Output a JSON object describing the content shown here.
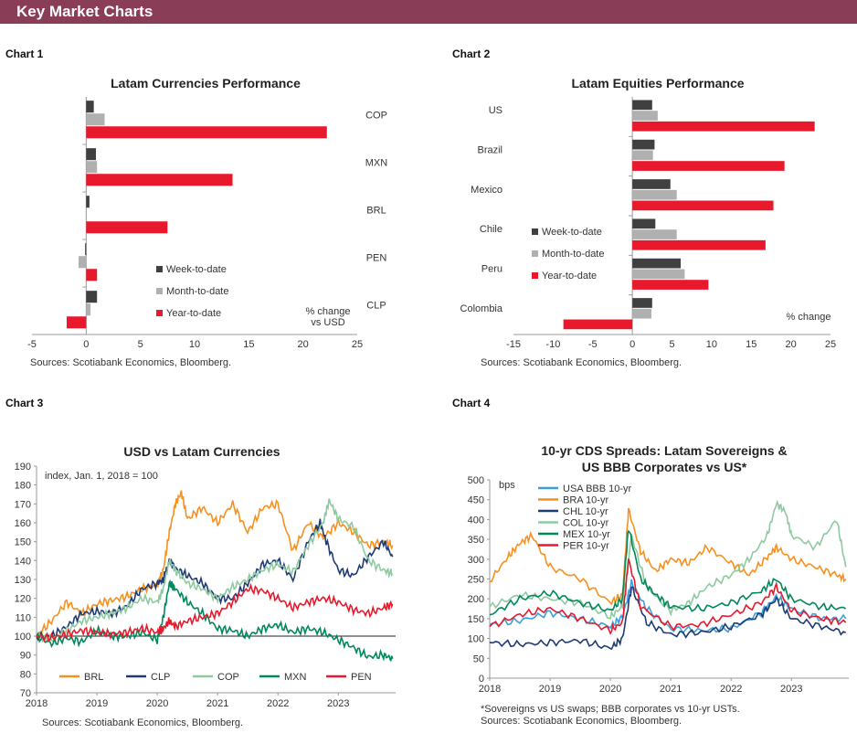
{
  "header": {
    "title": "Key Market Charts"
  },
  "chart_labels": [
    "Chart 1",
    "Chart 2",
    "Chart 3",
    "Chart 4"
  ],
  "chart_data": [
    {
      "type": "bar",
      "orientation": "horizontal",
      "title": "Latam Currencies Performance",
      "categories": [
        "COP",
        "MXN",
        "BRL",
        "PEN",
        "CLP"
      ],
      "series": [
        {
          "name": "Week-to-date",
          "color": "#404040",
          "values": [
            0.7,
            0.9,
            0.3,
            -0.1,
            1.0
          ]
        },
        {
          "name": "Month-to-date",
          "color": "#b0b0b0",
          "values": [
            1.7,
            1.0,
            0.0,
            -0.7,
            0.4
          ]
        },
        {
          "name": "Year-to-date",
          "color": "#e8192c",
          "values": [
            22.2,
            13.5,
            7.5,
            1.0,
            -1.8
          ]
        }
      ],
      "xlim": [
        -5,
        25
      ],
      "xticks": [
        "-5",
        "0",
        "5",
        "10",
        "15",
        "20",
        "25"
      ],
      "unit_note": [
        "% change",
        "vs USD"
      ],
      "source": "Sources: Scotiabank Economics, Bloomberg."
    },
    {
      "type": "bar",
      "orientation": "horizontal",
      "title": "Latam Equities Performance",
      "categories": [
        "US",
        "Brazil",
        "Mexico",
        "Chile",
        "Peru",
        "Colombia"
      ],
      "series": [
        {
          "name": "Week-to-date",
          "color": "#404040",
          "values": [
            2.5,
            2.8,
            4.8,
            2.9,
            6.1,
            2.5
          ]
        },
        {
          "name": "Month-to-date",
          "color": "#b0b0b0",
          "values": [
            3.2,
            2.6,
            5.6,
            5.6,
            6.6,
            2.4
          ]
        },
        {
          "name": "Year-to-date",
          "color": "#e8192c",
          "values": [
            23.0,
            19.2,
            17.8,
            16.8,
            9.6,
            -8.7
          ]
        }
      ],
      "xlim": [
        -15,
        25
      ],
      "xticks": [
        "-15",
        "-10",
        "-5",
        "0",
        "5",
        "10",
        "15",
        "20",
        "25"
      ],
      "unit_note": [
        "% change"
      ],
      "source": "Sources: Scotiabank Economics, Bloomberg."
    },
    {
      "type": "line",
      "title": "USD vs Latam Currencies",
      "note": "index, Jan. 1, 2018 = 100",
      "x_ticks": [
        "2018",
        "2019",
        "2020",
        "2021",
        "2022",
        "2023"
      ],
      "ylim": [
        70,
        190
      ],
      "yticks": [
        "70",
        "80",
        "90",
        "100",
        "110",
        "120",
        "130",
        "140",
        "150",
        "160",
        "170",
        "180",
        "190"
      ],
      "baseline": 100,
      "series": [
        {
          "name": "BRL",
          "color": "#f7901e",
          "x": [
            2018.0,
            2018.25,
            2018.5,
            2018.75,
            2019.0,
            2019.25,
            2019.5,
            2019.75,
            2020.0,
            2020.1,
            2020.2,
            2020.3,
            2020.4,
            2020.5,
            2020.75,
            2021.0,
            2021.25,
            2021.5,
            2021.75,
            2022.0,
            2022.25,
            2022.5,
            2022.75,
            2023.0,
            2023.25,
            2023.5,
            2023.75,
            2023.9
          ],
          "values": [
            100,
            108,
            118,
            112,
            117,
            119,
            121,
            125,
            127,
            135,
            155,
            170,
            176,
            162,
            168,
            160,
            170,
            155,
            168,
            170,
            145,
            160,
            152,
            160,
            155,
            148,
            150,
            148
          ]
        },
        {
          "name": "CLP",
          "color": "#1f3b73",
          "x": [
            2018.0,
            2018.25,
            2018.5,
            2018.75,
            2019.0,
            2019.25,
            2019.5,
            2019.75,
            2020.0,
            2020.1,
            2020.2,
            2020.3,
            2020.5,
            2020.75,
            2021.0,
            2021.25,
            2021.5,
            2021.75,
            2022.0,
            2022.25,
            2022.5,
            2022.7,
            2022.8,
            2023.0,
            2023.25,
            2023.5,
            2023.75,
            2023.9
          ],
          "values": [
            100,
            100,
            105,
            112,
            113,
            112,
            116,
            125,
            128,
            130,
            140,
            136,
            132,
            128,
            120,
            120,
            128,
            138,
            140,
            130,
            150,
            160,
            150,
            135,
            132,
            142,
            150,
            142
          ]
        },
        {
          "name": "COP",
          "color": "#8fc9a0",
          "x": [
            2018.0,
            2018.25,
            2018.5,
            2018.75,
            2019.0,
            2019.25,
            2019.5,
            2019.75,
            2020.0,
            2020.1,
            2020.2,
            2020.3,
            2020.5,
            2020.75,
            2021.0,
            2021.25,
            2021.5,
            2021.75,
            2022.0,
            2022.25,
            2022.5,
            2022.75,
            2022.85,
            2023.0,
            2023.25,
            2023.5,
            2023.75,
            2023.9
          ],
          "values": [
            100,
            98,
            103,
            108,
            110,
            112,
            115,
            120,
            118,
            125,
            140,
            135,
            128,
            125,
            120,
            126,
            130,
            135,
            138,
            134,
            148,
            160,
            172,
            162,
            158,
            140,
            135,
            133
          ]
        },
        {
          "name": "MXN",
          "color": "#00875a",
          "x": [
            2018.0,
            2018.25,
            2018.5,
            2018.75,
            2019.0,
            2019.25,
            2019.5,
            2019.75,
            2020.0,
            2020.1,
            2020.2,
            2020.3,
            2020.5,
            2020.75,
            2021.0,
            2021.25,
            2021.5,
            2021.75,
            2022.0,
            2022.25,
            2022.5,
            2022.75,
            2023.0,
            2023.25,
            2023.5,
            2023.75,
            2023.9
          ],
          "values": [
            100,
            96,
            99,
            97,
            103,
            100,
            100,
            102,
            98,
            110,
            128,
            125,
            118,
            112,
            104,
            103,
            100,
            104,
            106,
            102,
            104,
            102,
            98,
            94,
            89,
            90,
            88
          ]
        },
        {
          "name": "PEN",
          "color": "#e8192c",
          "x": [
            2018.0,
            2018.25,
            2018.5,
            2018.75,
            2019.0,
            2019.25,
            2019.5,
            2019.75,
            2020.0,
            2020.1,
            2020.2,
            2020.3,
            2020.5,
            2020.75,
            2021.0,
            2021.25,
            2021.5,
            2021.75,
            2022.0,
            2022.25,
            2022.5,
            2022.75,
            2023.0,
            2023.25,
            2023.5,
            2023.75,
            2023.9
          ],
          "values": [
            100,
            99,
            101,
            103,
            102,
            101,
            102,
            104,
            102,
            104,
            108,
            105,
            108,
            110,
            112,
            118,
            125,
            124,
            120,
            115,
            118,
            120,
            118,
            114,
            112,
            115,
            117
          ]
        }
      ],
      "source": "Sources: Scotiabank Economics, Bloomberg."
    },
    {
      "type": "line",
      "title": [
        "10-yr CDS Spreads: Latam Sovereigns &",
        "US BBB Corporates vs US*"
      ],
      "ylabel": "bps",
      "x_ticks": [
        "2018",
        "2019",
        "2020",
        "2021",
        "2022",
        "2023"
      ],
      "ylim": [
        0,
        500
      ],
      "yticks": [
        "0",
        "50",
        "100",
        "150",
        "200",
        "250",
        "300",
        "350",
        "400",
        "450",
        "500"
      ],
      "series": [
        {
          "name": "USA BBB 10-yr",
          "color": "#3aa0dc",
          "x": [
            2018.0,
            2018.5,
            2019.0,
            2019.5,
            2020.0,
            2020.2,
            2020.35,
            2020.6,
            2021.0,
            2021.5,
            2022.0,
            2022.5,
            2022.75,
            2023.0,
            2023.5,
            2023.9
          ],
          "values": [
            135,
            145,
            165,
            150,
            130,
            155,
            240,
            175,
            125,
            120,
            125,
            165,
            205,
            175,
            150,
            150
          ]
        },
        {
          "name": "BRA 10-yr",
          "color": "#f7901e",
          "x": [
            2018.0,
            2018.3,
            2018.5,
            2018.7,
            2019.0,
            2019.5,
            2020.0,
            2020.2,
            2020.3,
            2020.5,
            2020.75,
            2021.0,
            2021.3,
            2021.6,
            2022.0,
            2022.3,
            2022.6,
            2022.75,
            2023.0,
            2023.4,
            2023.75,
            2023.9
          ],
          "values": [
            245,
            305,
            340,
            360,
            280,
            250,
            190,
            210,
            425,
            320,
            270,
            300,
            290,
            330,
            290,
            260,
            305,
            330,
            300,
            280,
            260,
            250
          ]
        },
        {
          "name": "CHL 10-yr",
          "color": "#1f3b73",
          "x": [
            2018.0,
            2018.5,
            2019.0,
            2019.5,
            2020.0,
            2020.2,
            2020.35,
            2020.6,
            2021.0,
            2021.5,
            2022.0,
            2022.5,
            2022.75,
            2023.0,
            2023.5,
            2023.9
          ],
          "values": [
            90,
            85,
            90,
            95,
            75,
            100,
            230,
            140,
            110,
            115,
            130,
            160,
            200,
            150,
            130,
            115
          ]
        },
        {
          "name": "COL 10-yr",
          "color": "#8fc9a0",
          "x": [
            2018.0,
            2018.5,
            2019.0,
            2019.5,
            2020.0,
            2020.2,
            2020.35,
            2020.6,
            2021.0,
            2021.3,
            2021.6,
            2022.0,
            2022.3,
            2022.6,
            2022.75,
            2022.9,
            2023.0,
            2023.4,
            2023.75,
            2023.9
          ],
          "values": [
            180,
            210,
            200,
            190,
            155,
            180,
            360,
            230,
            170,
            190,
            230,
            260,
            300,
            360,
            440,
            420,
            360,
            330,
            400,
            280
          ]
        },
        {
          "name": "MEX 10-yr",
          "color": "#00875a",
          "x": [
            2018.0,
            2018.5,
            2019.0,
            2019.5,
            2020.0,
            2020.2,
            2020.3,
            2020.5,
            2020.75,
            2021.0,
            2021.5,
            2022.0,
            2022.5,
            2022.75,
            2023.0,
            2023.5,
            2023.9
          ],
          "values": [
            160,
            200,
            215,
            190,
            170,
            200,
            380,
            250,
            210,
            180,
            175,
            190,
            220,
            250,
            200,
            180,
            175
          ]
        },
        {
          "name": "PER 10-yr",
          "color": "#e8192c",
          "x": [
            2018.0,
            2018.5,
            2019.0,
            2019.5,
            2020.0,
            2020.2,
            2020.3,
            2020.5,
            2021.0,
            2021.5,
            2022.0,
            2022.5,
            2022.75,
            2023.0,
            2023.5,
            2023.9
          ],
          "values": [
            130,
            160,
            175,
            150,
            120,
            140,
            300,
            180,
            130,
            135,
            160,
            190,
            230,
            170,
            150,
            140
          ]
        }
      ],
      "footnote": "*Sovereigns vs US swaps; BBB corporates vs 10-yr USTs.",
      "source": "Sources: Scotiabank Economics, Bloomberg."
    }
  ]
}
